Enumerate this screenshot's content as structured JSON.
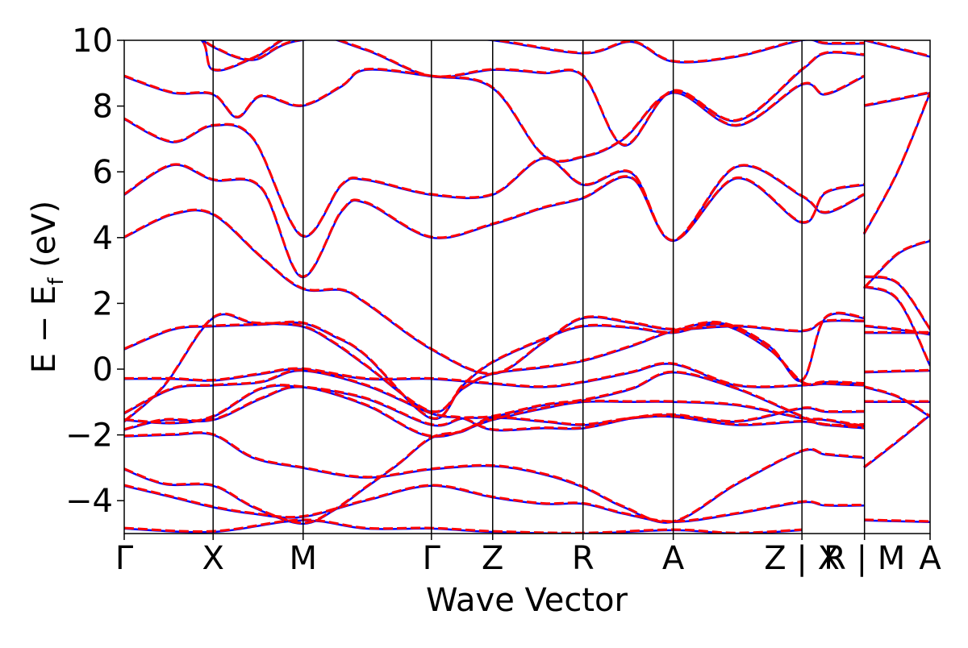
{
  "chart_data": {
    "type": "line",
    "title": "",
    "xlabel": "Wave Vector",
    "ylabel": "E − E_f (eV)",
    "ylabel_main": "E − E",
    "ylabel_sub": "f",
    "ylabel_tail": " (eV)",
    "ylim": [
      -5,
      10
    ],
    "yticks": [
      -4,
      -2,
      0,
      2,
      4,
      6,
      8,
      10
    ],
    "ytick_labels": [
      "−4",
      "−2",
      "0",
      "2",
      "4",
      "6",
      "8",
      "10"
    ],
    "grid": false,
    "legend": "none",
    "kpoints": [
      {
        "label": "Γ",
        "pos": 0.0
      },
      {
        "label": "X",
        "pos": 0.1103
      },
      {
        "label": "M",
        "pos": 0.222
      },
      {
        "label": "Γ",
        "pos": 0.3812
      },
      {
        "label": "Z",
        "pos": 0.4572
      },
      {
        "label": "R",
        "pos": 0.5693
      },
      {
        "label": "A",
        "pos": 0.6813
      },
      {
        "label": "Z | X",
        "pos": 0.841
      },
      {
        "label": "R | M",
        "pos": 0.9186
      },
      {
        "label": "A",
        "pos": 1.0
      }
    ],
    "series": [
      {
        "name": "",
        "color": "#0000ff",
        "dash": "solid",
        "offset": 0.0
      },
      {
        "name": "",
        "color": "#ff0000",
        "dash": "dashed",
        "offset": 0.02
      }
    ],
    "bands": [
      [
        [
          0,
          -4.85
        ],
        [
          0.11,
          -4.95
        ],
        [
          0.22,
          -4.6
        ],
        [
          0.3,
          -4.85
        ],
        [
          0.381,
          -4.85
        ],
        [
          0.457,
          -4.95
        ],
        [
          0.57,
          -5.0
        ],
        [
          0.681,
          -4.9
        ],
        [
          0.76,
          -5.0
        ],
        [
          0.841,
          -4.9
        ]
      ],
      [
        [
          0,
          -3.55
        ],
        [
          0.06,
          -3.9
        ],
        [
          0.11,
          -4.2
        ],
        [
          0.16,
          -4.4
        ],
        [
          0.22,
          -4.5
        ],
        [
          0.3,
          -4.0
        ],
        [
          0.381,
          -3.55
        ],
        [
          0.457,
          -3.9
        ],
        [
          0.52,
          -4.1
        ],
        [
          0.57,
          -4.1
        ],
        [
          0.62,
          -4.4
        ],
        [
          0.681,
          -4.65
        ],
        [
          0.76,
          -4.4
        ],
        [
          0.841,
          -4.05
        ],
        [
          0.87,
          -4.15
        ],
        [
          0.918,
          -4.15
        ],
        [
          0.918,
          -4.6
        ],
        [
          1.0,
          -4.65
        ]
      ],
      [
        [
          0,
          -3.05
        ],
        [
          0.05,
          -3.5
        ],
        [
          0.11,
          -3.55
        ],
        [
          0.16,
          -4.2
        ],
        [
          0.22,
          -4.7
        ],
        [
          0.26,
          -4.3
        ],
        [
          0.3,
          -3.6
        ],
        [
          0.34,
          -2.9
        ],
        [
          0.381,
          -2.1
        ],
        [
          0.42,
          -1.9
        ],
        [
          0.457,
          -1.5
        ],
        [
          0.52,
          -1.6
        ],
        [
          0.57,
          -1.7
        ],
        [
          0.63,
          -1.5
        ],
        [
          0.681,
          -1.45
        ],
        [
          0.76,
          -1.7
        ],
        [
          0.841,
          -1.6
        ],
        [
          0.87,
          -1.7
        ],
        [
          0.918,
          -1.8
        ],
        [
          0.918,
          -3.0
        ],
        [
          0.96,
          -2.2
        ],
        [
          1.0,
          -1.4
        ]
      ],
      [
        [
          0,
          -2.05
        ],
        [
          0.06,
          -2.0
        ],
        [
          0.11,
          -2.0
        ],
        [
          0.16,
          -2.7
        ],
        [
          0.22,
          -3.0
        ],
        [
          0.3,
          -3.3
        ],
        [
          0.381,
          -3.05
        ],
        [
          0.457,
          -2.95
        ],
        [
          0.52,
          -3.2
        ],
        [
          0.57,
          -3.6
        ],
        [
          0.62,
          -4.2
        ],
        [
          0.681,
          -4.65
        ],
        [
          0.76,
          -3.5
        ],
        [
          0.841,
          -2.5
        ],
        [
          0.87,
          -2.6
        ],
        [
          0.918,
          -2.7
        ],
        [
          0.918,
          -1.0
        ],
        [
          0.96,
          -1.0
        ],
        [
          1.0,
          -1.0
        ]
      ],
      [
        [
          0,
          -1.85
        ],
        [
          0.05,
          -1.55
        ],
        [
          0.11,
          -1.55
        ],
        [
          0.17,
          -0.9
        ],
        [
          0.22,
          -0.55
        ],
        [
          0.3,
          -1.1
        ],
        [
          0.381,
          -2.05
        ],
        [
          0.457,
          -1.55
        ],
        [
          0.52,
          -1.2
        ],
        [
          0.57,
          -1.0
        ],
        [
          0.63,
          -1.0
        ],
        [
          0.681,
          -1.0
        ],
        [
          0.76,
          -1.1
        ],
        [
          0.841,
          -1.5
        ],
        [
          0.87,
          -1.55
        ],
        [
          0.918,
          -1.75
        ],
        [
          0.918,
          -0.55
        ],
        [
          0.96,
          -0.85
        ],
        [
          1.0,
          -1.45
        ]
      ],
      [
        [
          0,
          -1.55
        ],
        [
          0.06,
          -1.65
        ],
        [
          0.11,
          -1.45
        ],
        [
          0.17,
          -0.6
        ],
        [
          0.22,
          -0.55
        ],
        [
          0.3,
          -0.9
        ],
        [
          0.381,
          -1.7
        ],
        [
          0.42,
          -1.5
        ],
        [
          0.457,
          -1.45
        ],
        [
          0.52,
          -1.1
        ],
        [
          0.57,
          -0.95
        ],
        [
          0.63,
          -0.6
        ],
        [
          0.681,
          -0.1
        ],
        [
          0.76,
          -0.6
        ],
        [
          0.841,
          -1.45
        ],
        [
          0.87,
          -1.7
        ],
        [
          0.918,
          -1.7
        ],
        [
          0.918,
          -0.1
        ],
        [
          1.0,
          -0.05
        ]
      ],
      [
        [
          0,
          -1.35
        ],
        [
          0.06,
          -0.6
        ],
        [
          0.11,
          -0.5
        ],
        [
          0.17,
          -0.4
        ],
        [
          0.22,
          -0.05
        ],
        [
          0.3,
          -0.5
        ],
        [
          0.381,
          -1.35
        ],
        [
          0.42,
          -1.5
        ],
        [
          0.457,
          -1.85
        ],
        [
          0.52,
          -1.8
        ],
        [
          0.57,
          -1.8
        ],
        [
          0.63,
          -1.5
        ],
        [
          0.681,
          -1.4
        ],
        [
          0.76,
          -1.6
        ],
        [
          0.841,
          -1.2
        ],
        [
          0.87,
          -1.3
        ],
        [
          0.918,
          -1.3
        ],
        [
          0.918,
          1.1
        ],
        [
          1.0,
          1.1
        ]
      ],
      [
        [
          0,
          -0.3
        ],
        [
          0.06,
          -0.3
        ],
        [
          0.11,
          -0.35
        ],
        [
          0.17,
          -0.15
        ],
        [
          0.22,
          0.0
        ],
        [
          0.3,
          -0.3
        ],
        [
          0.381,
          -0.3
        ],
        [
          0.457,
          -0.45
        ],
        [
          0.52,
          -0.55
        ],
        [
          0.57,
          -0.4
        ],
        [
          0.63,
          -0.1
        ],
        [
          0.681,
          0.15
        ],
        [
          0.76,
          -0.5
        ],
        [
          0.841,
          -0.5
        ],
        [
          0.87,
          -0.4
        ],
        [
          0.918,
          -0.45
        ],
        [
          0.918,
          1.3
        ],
        [
          0.96,
          1.2
        ],
        [
          1.0,
          1.05
        ]
      ],
      [
        [
          0,
          0.6
        ],
        [
          0.06,
          1.2
        ],
        [
          0.11,
          1.3
        ],
        [
          0.17,
          1.35
        ],
        [
          0.22,
          1.4
        ],
        [
          0.26,
          1.0
        ],
        [
          0.3,
          0.4
        ],
        [
          0.381,
          -1.5
        ],
        [
          0.42,
          -0.5
        ],
        [
          0.457,
          0.2
        ],
        [
          0.52,
          0.9
        ],
        [
          0.57,
          1.3
        ],
        [
          0.63,
          1.25
        ],
        [
          0.681,
          1.1
        ],
        [
          0.74,
          1.35
        ],
        [
          0.8,
          0.6
        ],
        [
          0.841,
          -0.4
        ],
        [
          0.87,
          -0.45
        ],
        [
          0.918,
          -0.5
        ],
        [
          0.918,
          2.5
        ],
        [
          0.96,
          2.1
        ],
        [
          1.0,
          0.1
        ]
      ],
      [
        [
          0,
          -1.6
        ],
        [
          0.05,
          -0.5
        ],
        [
          0.11,
          1.55
        ],
        [
          0.16,
          1.4
        ],
        [
          0.22,
          1.3
        ],
        [
          0.26,
          0.8
        ],
        [
          0.3,
          0.1
        ],
        [
          0.381,
          -1.3
        ],
        [
          0.42,
          -0.6
        ],
        [
          0.457,
          -0.15
        ],
        [
          0.52,
          0.05
        ],
        [
          0.57,
          0.25
        ],
        [
          0.63,
          0.7
        ],
        [
          0.681,
          1.15
        ],
        [
          0.74,
          1.4
        ],
        [
          0.8,
          0.7
        ],
        [
          0.841,
          -0.35
        ],
        [
          0.87,
          1.55
        ],
        [
          0.918,
          1.55
        ],
        [
          0.918,
          2.8
        ],
        [
          0.96,
          2.6
        ],
        [
          1.0,
          1.2
        ]
      ],
      [
        [
          0,
          4.0
        ],
        [
          0.06,
          4.7
        ],
        [
          0.11,
          4.7
        ],
        [
          0.17,
          3.4
        ],
        [
          0.22,
          2.45
        ],
        [
          0.27,
          2.4
        ],
        [
          0.3,
          2.0
        ],
        [
          0.381,
          0.6
        ],
        [
          0.457,
          -0.15
        ],
        [
          0.52,
          0.8
        ],
        [
          0.57,
          1.55
        ],
        [
          0.63,
          1.4
        ],
        [
          0.681,
          1.2
        ],
        [
          0.76,
          1.3
        ],
        [
          0.841,
          1.15
        ],
        [
          0.87,
          1.45
        ],
        [
          0.918,
          1.45
        ],
        [
          0.918,
          2.45
        ],
        [
          0.96,
          3.5
        ],
        [
          1.0,
          3.9
        ]
      ],
      [
        [
          0,
          5.3
        ],
        [
          0.06,
          6.2
        ],
        [
          0.11,
          5.75
        ],
        [
          0.17,
          5.5
        ],
        [
          0.22,
          2.8
        ],
        [
          0.27,
          4.8
        ],
        [
          0.3,
          5.05
        ],
        [
          0.381,
          4.0
        ],
        [
          0.457,
          4.4
        ],
        [
          0.52,
          4.9
        ],
        [
          0.57,
          5.2
        ],
        [
          0.63,
          5.8
        ],
        [
          0.681,
          3.9
        ],
        [
          0.76,
          5.8
        ],
        [
          0.841,
          4.45
        ],
        [
          0.87,
          5.35
        ],
        [
          0.918,
          5.6
        ],
        [
          0.918,
          4.1
        ],
        [
          0.96,
          6.0
        ],
        [
          1.0,
          8.4
        ]
      ],
      [
        [
          0,
          7.6
        ],
        [
          0.06,
          6.9
        ],
        [
          0.11,
          7.4
        ],
        [
          0.16,
          7.0
        ],
        [
          0.22,
          4.05
        ],
        [
          0.27,
          5.6
        ],
        [
          0.3,
          5.75
        ],
        [
          0.381,
          5.3
        ],
        [
          0.457,
          5.3
        ],
        [
          0.52,
          6.4
        ],
        [
          0.57,
          5.6
        ],
        [
          0.63,
          5.95
        ],
        [
          0.681,
          3.9
        ],
        [
          0.76,
          6.15
        ],
        [
          0.841,
          5.25
        ],
        [
          0.87,
          4.75
        ],
        [
          0.918,
          5.3
        ],
        [
          0.918,
          8.0
        ],
        [
          0.96,
          8.2
        ],
        [
          1.0,
          8.4
        ]
      ],
      [
        [
          0,
          8.9
        ],
        [
          0.06,
          8.4
        ],
        [
          0.11,
          8.35
        ],
        [
          0.14,
          7.65
        ],
        [
          0.17,
          8.3
        ],
        [
          0.22,
          8.0
        ],
        [
          0.27,
          8.6
        ],
        [
          0.3,
          9.1
        ],
        [
          0.381,
          8.9
        ],
        [
          0.457,
          8.55
        ],
        [
          0.52,
          6.5
        ],
        [
          0.57,
          6.45
        ],
        [
          0.62,
          7.0
        ],
        [
          0.681,
          8.4
        ],
        [
          0.76,
          7.4
        ],
        [
          0.841,
          8.65
        ],
        [
          0.87,
          8.35
        ],
        [
          0.918,
          8.9
        ],
        [
          0.918,
          10.0
        ],
        [
          1.0,
          9.5
        ]
      ],
      [
        [
          0,
          10.2
        ],
        [
          0.09,
          10.1
        ],
        [
          0.11,
          9.1
        ],
        [
          0.16,
          9.45
        ],
        [
          0.22,
          10.2
        ],
        [
          0.3,
          9.7
        ],
        [
          0.381,
          8.9
        ],
        [
          0.457,
          9.1
        ],
        [
          0.52,
          9.0
        ],
        [
          0.57,
          8.9
        ],
        [
          0.62,
          6.8
        ],
        [
          0.681,
          8.45
        ],
        [
          0.76,
          7.55
        ],
        [
          0.841,
          9.1
        ],
        [
          0.87,
          9.6
        ],
        [
          0.918,
          9.55
        ]
      ],
      [
        [
          0.09,
          10.2
        ],
        [
          0.11,
          9.8
        ],
        [
          0.16,
          9.4
        ],
        [
          0.22,
          10.0
        ],
        [
          0.381,
          10.1
        ],
        [
          0.457,
          10.0
        ],
        [
          0.57,
          9.6
        ],
        [
          0.63,
          9.95
        ],
        [
          0.681,
          9.35
        ],
        [
          0.76,
          9.5
        ],
        [
          0.841,
          10.0
        ],
        [
          0.87,
          9.9
        ],
        [
          0.918,
          9.9
        ]
      ]
    ]
  }
}
